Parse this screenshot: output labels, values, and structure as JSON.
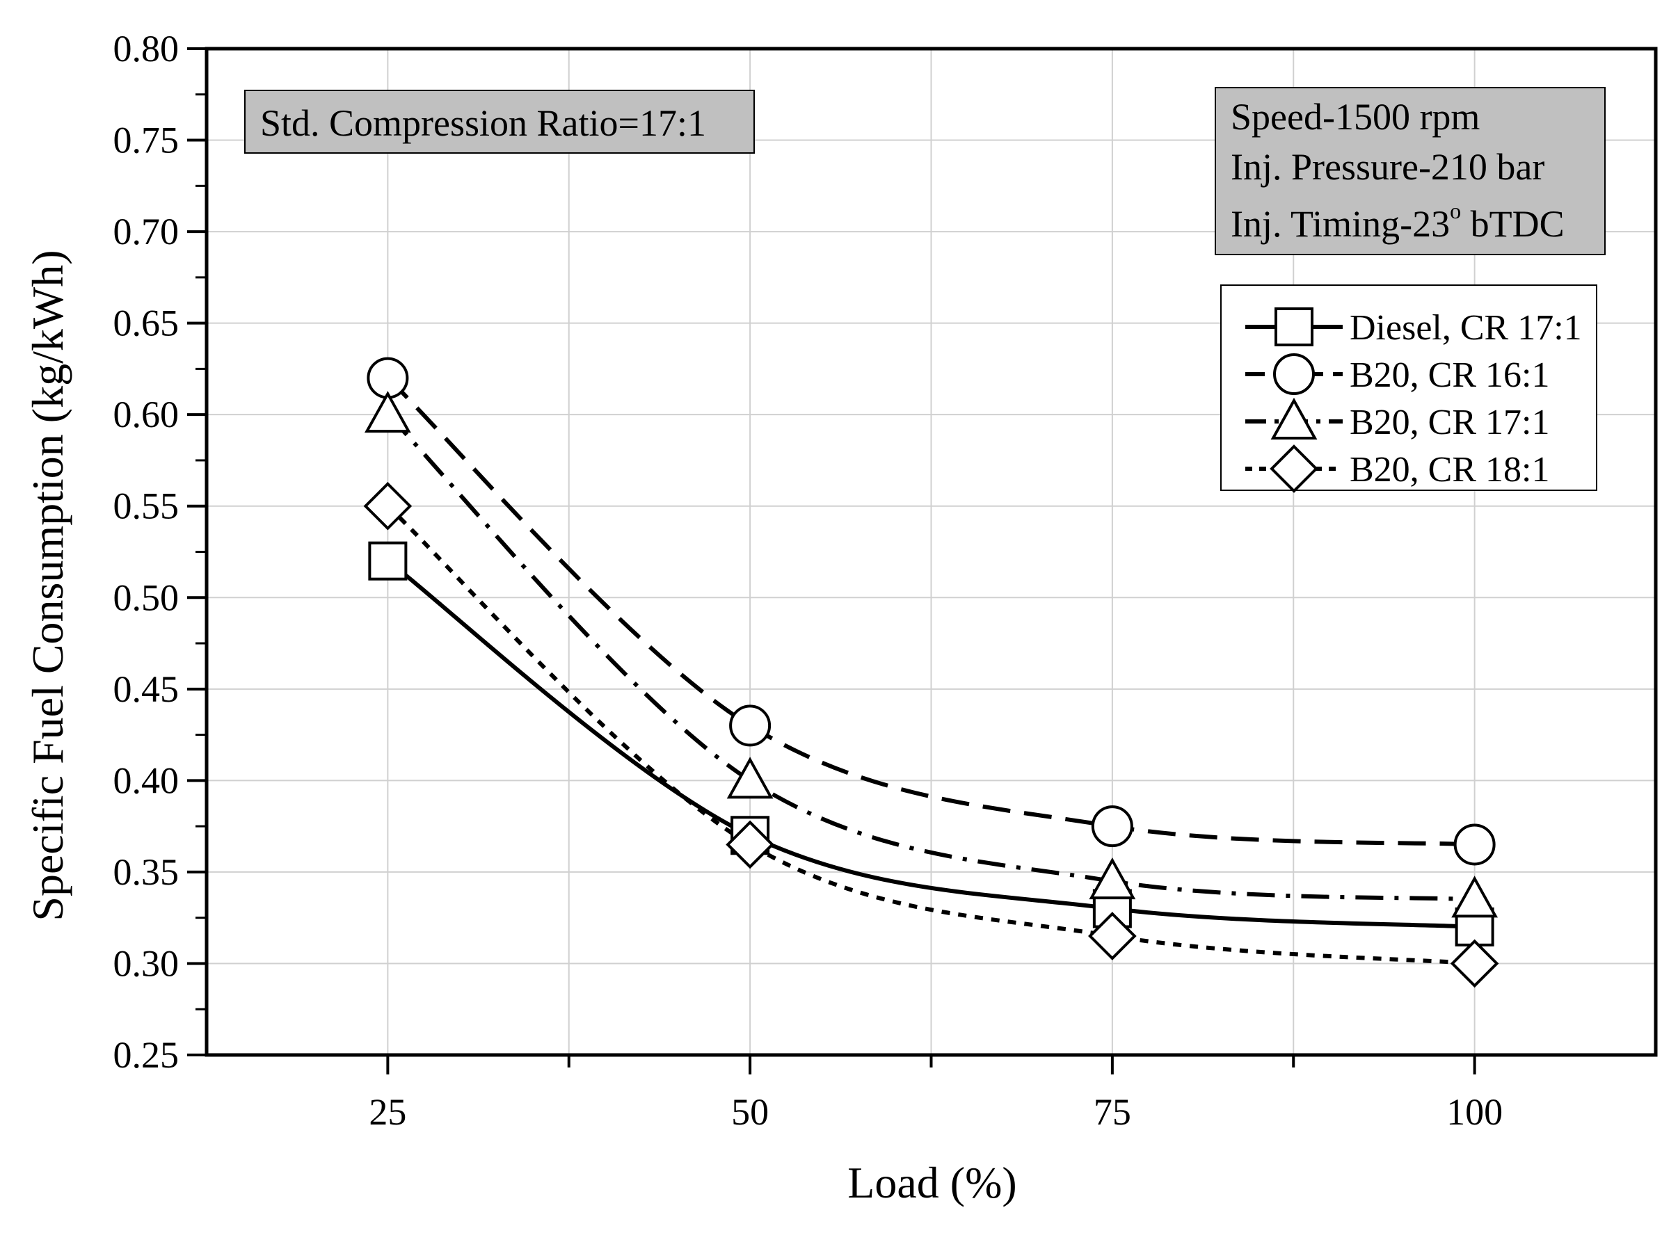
{
  "chart_data": {
    "type": "line",
    "title": "",
    "xlabel": "Load (%)",
    "ylabel": "Specific Fuel Consumption (kg/kWh)",
    "xlim": [
      12.5,
      112.5
    ],
    "ylim": [
      0.25,
      0.8
    ],
    "grid": true,
    "x": [
      25,
      50,
      75,
      100
    ],
    "x_ticks": [
      "25",
      "50",
      "75",
      "100"
    ],
    "y_ticks": [
      "0.25",
      "0.30",
      "0.35",
      "0.40",
      "0.45",
      "0.50",
      "0.55",
      "0.60",
      "0.65",
      "0.70",
      "0.75",
      "0.80"
    ],
    "series": [
      {
        "name": "Diesel, CR 17:1",
        "marker": "square",
        "line_style": "solid",
        "values": [
          0.52,
          0.37,
          0.33,
          0.32
        ]
      },
      {
        "name": "B20, CR 16:1",
        "marker": "circle",
        "line_style": "dash",
        "values": [
          0.62,
          0.43,
          0.375,
          0.365
        ]
      },
      {
        "name": "B20, CR 17:1",
        "marker": "triangle",
        "line_style": "dashdot",
        "values": [
          0.6,
          0.4,
          0.345,
          0.335
        ]
      },
      {
        "name": "B20, CR 18:1",
        "marker": "diamond",
        "line_style": "dot",
        "values": [
          0.55,
          0.365,
          0.315,
          0.3
        ]
      }
    ],
    "annotations": {
      "compression_box": "Std. Compression Ratio=17:1",
      "conditions": {
        "speed": "Speed-1500 rpm",
        "pressure": "Inj. Pressure-210 bar",
        "timing_prefix": "Inj. Timing-23",
        "timing_sup": "o",
        "timing_suffix": " bTDC"
      }
    },
    "legend_position": "right",
    "colors": {
      "line": "#000000",
      "box_fill": "#c0c0c0",
      "grid": "#d0d0d0",
      "background": "#ffffff"
    }
  }
}
